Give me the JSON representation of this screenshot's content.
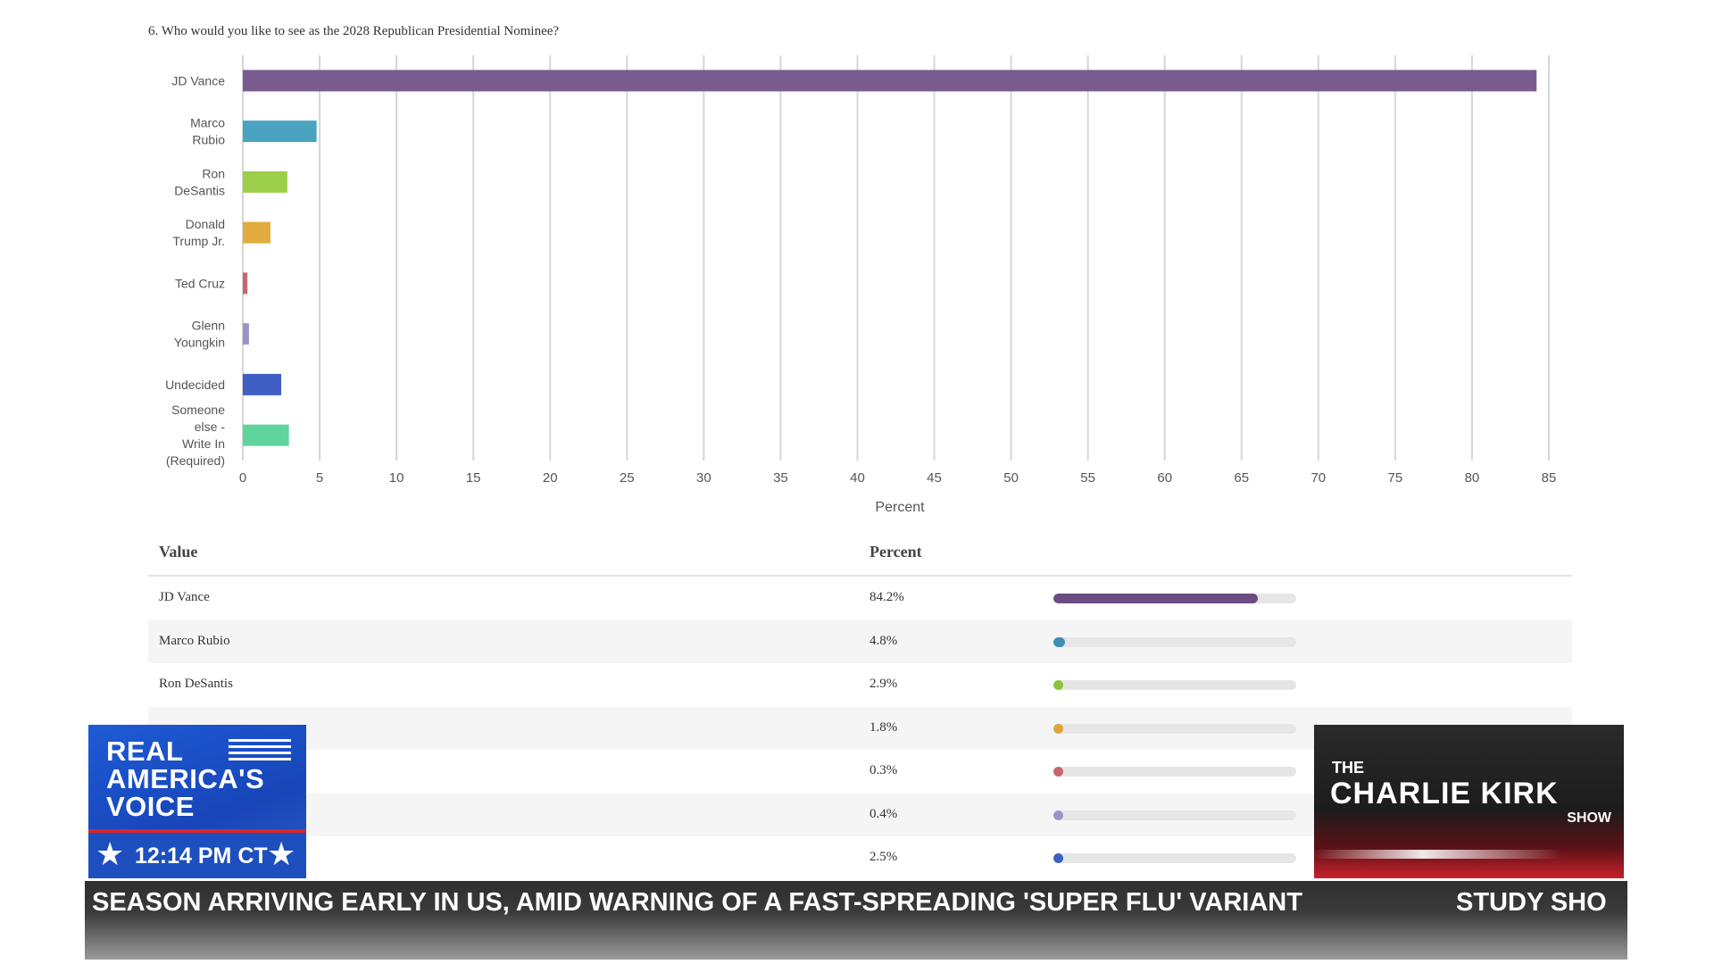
{
  "question": "6. Who would you like to see as the 2028 Republican Presidential Nominee?",
  "chart_data": {
    "type": "bar",
    "orientation": "horizontal",
    "categories": [
      [
        "JD Vance"
      ],
      [
        "Marco",
        "Rubio"
      ],
      [
        "Ron",
        "DeSantis"
      ],
      [
        "Donald",
        "Trump Jr."
      ],
      [
        "Ted Cruz"
      ],
      [
        "Glenn",
        "Youngkin"
      ],
      [
        "Undecided"
      ],
      [
        "Someone",
        "else -",
        "Write In",
        "(Required)"
      ]
    ],
    "values": [
      84.2,
      4.8,
      2.9,
      1.8,
      0.3,
      0.4,
      2.5,
      3.0
    ],
    "colors": [
      "#7a5b8f",
      "#4aa3c0",
      "#9bcf4a",
      "#e2ab3f",
      "#c9656d",
      "#9b93c8",
      "#3f5fc4",
      "#5fd59c"
    ],
    "xlabel": "Percent",
    "xlim": [
      0,
      85
    ],
    "xticks": [
      "0",
      "5",
      "10",
      "15",
      "20",
      "25",
      "30",
      "35",
      "40",
      "45",
      "50",
      "55",
      "60",
      "65",
      "70",
      "75",
      "80",
      "85"
    ],
    "grid": true
  },
  "table": {
    "headers": {
      "value": "Value",
      "percent": "Percent"
    },
    "rows": [
      {
        "name": "JD Vance",
        "percent": "84.2%",
        "value": 84.2,
        "color": "#6b4d82"
      },
      {
        "name": "Marco Rubio",
        "percent": "4.8%",
        "value": 4.8,
        "color": "#3e8fb3"
      },
      {
        "name": "Ron DeSantis",
        "percent": "2.9%",
        "value": 2.9,
        "color": "#8cc23b"
      },
      {
        "name": "",
        "percent": "1.8%",
        "value": 1.8,
        "color": "#e0a43a"
      },
      {
        "name": "",
        "percent": "0.3%",
        "value": 0.3,
        "color": "#c9656d"
      },
      {
        "name": "",
        "percent": "0.4%",
        "value": 0.4,
        "color": "#9b93c8"
      },
      {
        "name": "",
        "percent": "2.5%",
        "value": 2.5,
        "color": "#3f5fc4"
      }
    ]
  },
  "overlay": {
    "network_brand": "REAL AMERICA'S VOICE",
    "network_brand_lines": [
      "REAL",
      "AMERICA'S",
      "VOICE"
    ],
    "time": "12:14 PM CT",
    "show_the": "THE",
    "show_name": "CHARLIE KIRK",
    "show_word": "SHOW",
    "ticker_text": "SEASON ARRIVING EARLY IN US, AMID WARNING OF A FAST-SPREADING 'SUPER FLU' VARIANT",
    "ticker_text_2": "STUDY SHO"
  }
}
